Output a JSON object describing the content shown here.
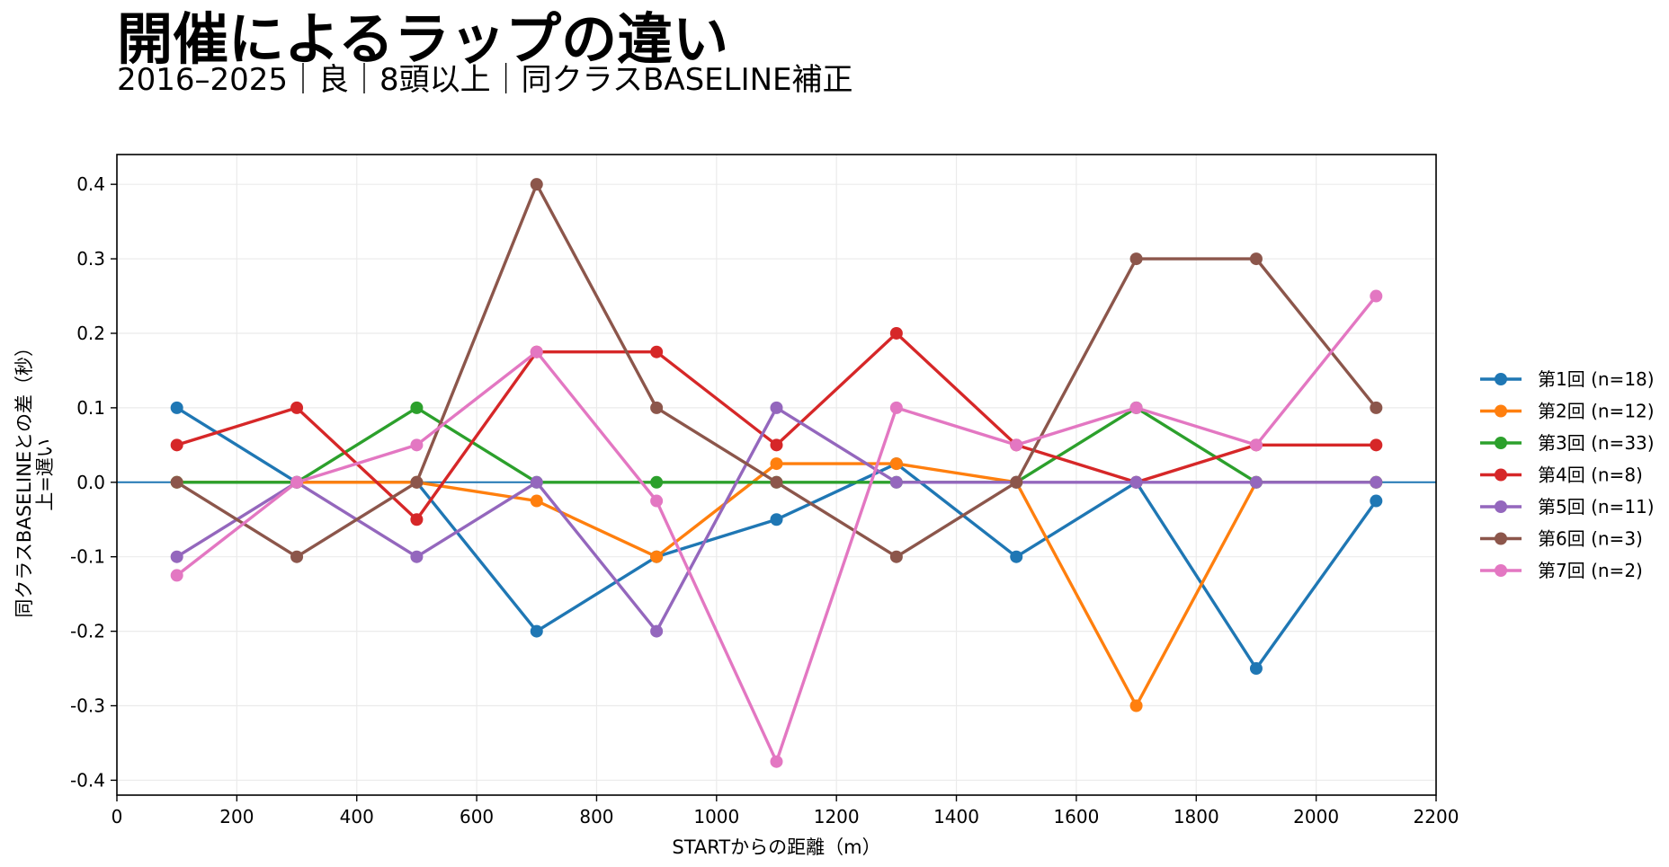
{
  "chart_data": {
    "type": "line",
    "title": "開催によるラップの違い",
    "subtitle": "2016–2025｜良｜8頭以上｜同クラスBASELINE補正",
    "xlabel": "STARTからの距離（m）",
    "ylabel": [
      "同クラスBASELINEとの差（秒）",
      "上=遅い"
    ],
    "xlim": [
      0,
      2200
    ],
    "ylim": [
      -0.42,
      0.44
    ],
    "xticks": [
      0,
      200,
      400,
      600,
      800,
      1000,
      1200,
      1400,
      1600,
      1800,
      2000,
      2200
    ],
    "yticks": [
      0.4,
      0.3,
      0.2,
      0.1,
      0.0,
      -0.1,
      -0.2,
      -0.3,
      -0.4
    ],
    "grid": true,
    "legend_position": "right",
    "baseline": {
      "y": 0.0,
      "color": "#1f77b4"
    },
    "x": [
      100,
      300,
      500,
      700,
      900,
      1100,
      1300,
      1500,
      1700,
      1900,
      2100
    ],
    "series": [
      {
        "name": "第1回 (n=18)",
        "color": "#1f77b4",
        "values": [
          0.1,
          0.0,
          0.0,
          -0.2,
          -0.1,
          -0.05,
          0.025,
          -0.1,
          0.0,
          -0.25,
          -0.025
        ]
      },
      {
        "name": "第2回 (n=12)",
        "color": "#ff7f0e",
        "values": [
          0.0,
          0.0,
          0.0,
          -0.025,
          -0.1,
          0.025,
          0.025,
          0.0,
          -0.3,
          0.0,
          0.0
        ]
      },
      {
        "name": "第3回 (n=33)",
        "color": "#2ca02c",
        "values": [
          0.0,
          0.0,
          0.1,
          0.0,
          0.0,
          0.0,
          0.0,
          0.0,
          0.1,
          0.0,
          0.0
        ]
      },
      {
        "name": "第4回 (n=8)",
        "color": "#d62728",
        "values": [
          0.05,
          0.1,
          -0.05,
          0.175,
          0.175,
          0.05,
          0.2,
          0.05,
          0.0,
          0.05,
          0.05
        ]
      },
      {
        "name": "第5回 (n=11)",
        "color": "#9467bd",
        "values": [
          -0.1,
          0.0,
          -0.1,
          0.0,
          -0.2,
          0.1,
          0.0,
          0.0,
          0.0,
          0.0,
          0.0
        ]
      },
      {
        "name": "第6回 (n=3)",
        "color": "#8c564b",
        "values": [
          0.0,
          -0.1,
          0.0,
          0.4,
          0.1,
          0.0,
          -0.1,
          0.0,
          0.3,
          0.3,
          0.1
        ]
      },
      {
        "name": "第7回 (n=2)",
        "color": "#e377c2",
        "values": [
          -0.125,
          0.0,
          0.05,
          0.175,
          -0.025,
          -0.375,
          0.1,
          0.05,
          0.1,
          0.05,
          0.25
        ]
      }
    ]
  }
}
